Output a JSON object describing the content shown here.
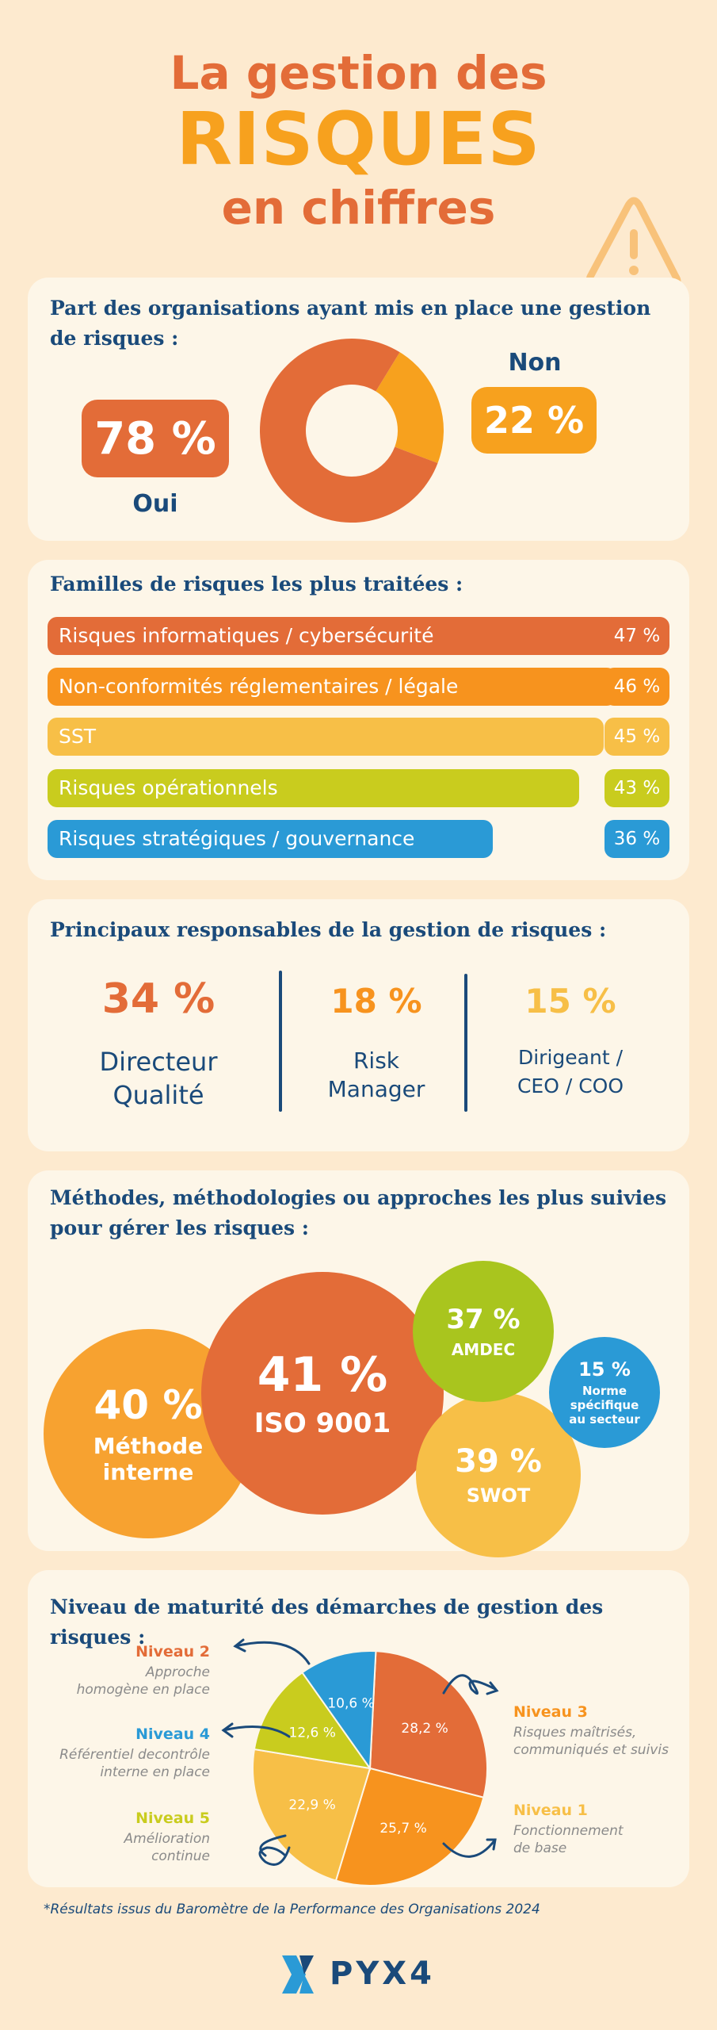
{
  "header": {
    "line1": "La gestion des",
    "line2": "RISQUES",
    "line3": "en chiffres",
    "warning_icon": "warning-triangle-icon"
  },
  "organisations": {
    "title": "Part des organisations ayant mis en place une gestion de risques :",
    "oui_value": "78 %",
    "oui_label": "Oui",
    "non_value": "22 %",
    "non_label": "Non",
    "oui_fraction": 0.78,
    "colors": {
      "oui": "#e36c38",
      "non": "#f7a11e"
    }
  },
  "familles": {
    "title": "Familles de risques les plus traitées :",
    "items": [
      {
        "label": "Risques informatiques / cybersécurité",
        "value": "47 %",
        "fraction": 0.47,
        "color": "#e36c38"
      },
      {
        "label": "Non-conformités réglementaires / légale",
        "value": "46 %",
        "fraction": 0.46,
        "color": "#f7931e"
      },
      {
        "label": "SST",
        "value": "45 %",
        "fraction": 0.45,
        "color": "#f7bf47"
      },
      {
        "label": "Risques opérationnels",
        "value": "43 %",
        "fraction": 0.43,
        "color": "#c9cc1e"
      },
      {
        "label": "Risques stratégiques / gouvernance",
        "value": "36 %",
        "fraction": 0.36,
        "color": "#2a9ad6"
      }
    ]
  },
  "responsables": {
    "title": "Principaux responsables de la gestion de risques :",
    "items": [
      {
        "value": "34 %",
        "label_l1": "Directeur",
        "label_l2": "Qualité",
        "color": "#e36c38"
      },
      {
        "value": "18 %",
        "label_l1": "Risk",
        "label_l2": "Manager",
        "color": "#f7931e"
      },
      {
        "value": "15 %",
        "label_l1": "Dirigeant /",
        "label_l2": "CEO / COO",
        "color": "#f7bf47"
      }
    ]
  },
  "methodes": {
    "title_l1": "Méthodes, méthodologies ou approches les plus suivies",
    "title_l2": "pour gérer les risques :",
    "bubbles": [
      {
        "value": "40 %",
        "label_l1": "Méthode",
        "label_l2": "interne",
        "color": "#f7a230"
      },
      {
        "value": "41 %",
        "label_l1": "ISO 9001",
        "label_l2": "",
        "color": "#e36c38"
      },
      {
        "value": "37 %",
        "label_l1": "AMDEC",
        "label_l2": "",
        "color": "#a9c51e"
      },
      {
        "value": "39 %",
        "label_l1": "SWOT",
        "label_l2": "",
        "color": "#f7bf47"
      },
      {
        "value": "15 %",
        "label_l1": "Norme",
        "label_l2": "spécifique",
        "label_l3": "au  secteur",
        "color": "#2a9ad6"
      }
    ]
  },
  "maturite": {
    "title": "Niveau de maturité des démarches de gestion des risques :",
    "niveaux": [
      {
        "name": "Niveau 2",
        "desc_l1": "Approche",
        "desc_l2": "homogène en place",
        "slice": "28,2 %",
        "color": "#e36c38"
      },
      {
        "name": "Niveau 3",
        "desc_l1": "Risques maîtrisés,",
        "desc_l2": "communiqués et suivis",
        "slice": "25,7 %",
        "color": "#f7931e"
      },
      {
        "name": "Niveau 1",
        "desc_l1": "Fonctionnement",
        "desc_l2": "de base",
        "slice": "22,9 %",
        "color": "#f7bf47"
      },
      {
        "name": "Niveau 5",
        "desc_l1": "Amélioration",
        "desc_l2": "continue",
        "slice": "12,6 %",
        "color": "#c9cc1e"
      },
      {
        "name": "Niveau 4",
        "desc_l1": "Référentiel decontrôle",
        "desc_l2": "interne en place",
        "slice": "10,6 %",
        "color": "#2a9ad6"
      }
    ]
  },
  "chart_data": {
    "type": "pie",
    "categories": [
      "Niveau 2",
      "Niveau 3",
      "Niveau 1",
      "Niveau 5",
      "Niveau 4"
    ],
    "values": [
      28.2,
      25.7,
      22.9,
      12.6,
      10.6
    ],
    "title": "Niveau de maturité des démarches de gestion des risques :"
  },
  "footer": {
    "note": "*Résultats issus du Baromètre de la Performance des Organisations 2024",
    "logo_text": "PYX4"
  }
}
